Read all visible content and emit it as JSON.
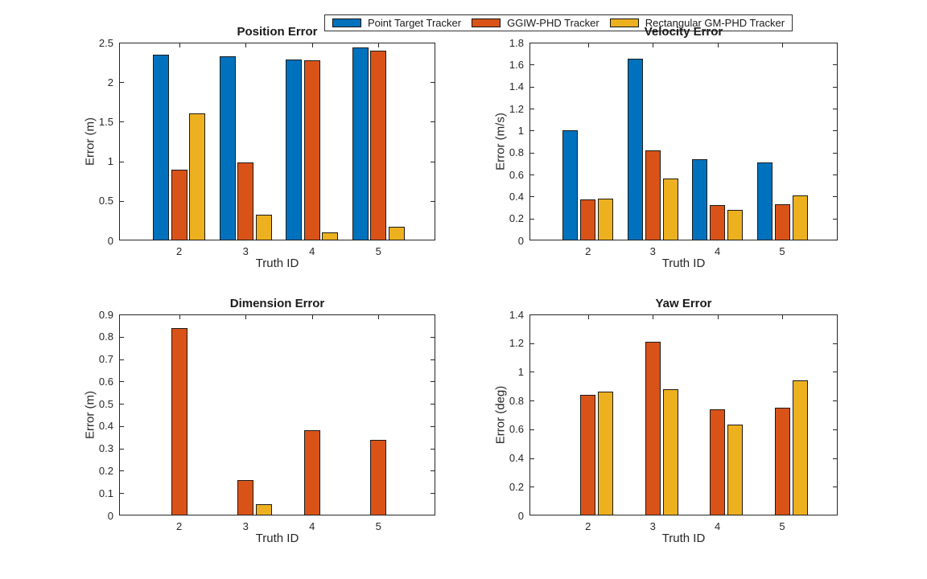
{
  "figure": {
    "background": "#ffffff",
    "axis_color": "#262626"
  },
  "legend": {
    "position": "top-center",
    "items": [
      {
        "label": "Point Target Tracker",
        "color": "#0072BD"
      },
      {
        "label": "GGIW-PHD Tracker",
        "color": "#D95319"
      },
      {
        "label": "Rectangular GM-PHD Tracker",
        "color": "#EDB120"
      }
    ]
  },
  "chart_data": [
    {
      "type": "bar",
      "title": "Position Error",
      "xlabel": "Truth ID",
      "ylabel": "Error (m)",
      "categories": [
        "2",
        "3",
        "4",
        "5"
      ],
      "ylim": [
        0,
        2.5
      ],
      "yticks": [
        "0",
        "0.5",
        "1",
        "1.5",
        "2",
        "2.5"
      ],
      "grid": false,
      "series": [
        {
          "name": "Point Target Tracker",
          "color": "#0072BD",
          "values": [
            2.35,
            2.33,
            2.29,
            2.44
          ]
        },
        {
          "name": "GGIW-PHD Tracker",
          "color": "#D95319",
          "values": [
            0.89,
            0.99,
            2.28,
            2.4
          ]
        },
        {
          "name": "Rectangular GM-PHD Tracker",
          "color": "#EDB120",
          "values": [
            1.61,
            0.33,
            0.1,
            0.17
          ]
        }
      ]
    },
    {
      "type": "bar",
      "title": "Velocity Error",
      "xlabel": "Truth ID",
      "ylabel": "Error (m/s)",
      "categories": [
        "2",
        "3",
        "4",
        "5"
      ],
      "ylim": [
        0,
        1.8
      ],
      "yticks": [
        "0",
        "0.2",
        "0.4",
        "0.6",
        "0.8",
        "1",
        "1.2",
        "1.4",
        "1.6",
        "1.8"
      ],
      "grid": false,
      "series": [
        {
          "name": "Point Target Tracker",
          "color": "#0072BD",
          "values": [
            1.0,
            1.65,
            0.74,
            0.71
          ]
        },
        {
          "name": "GGIW-PHD Tracker",
          "color": "#D95319",
          "values": [
            0.37,
            0.82,
            0.32,
            0.33
          ]
        },
        {
          "name": "Rectangular GM-PHD Tracker",
          "color": "#EDB120",
          "values": [
            0.38,
            0.56,
            0.28,
            0.41
          ]
        }
      ]
    },
    {
      "type": "bar",
      "title": "Dimension Error",
      "xlabel": "Truth ID",
      "ylabel": "Error (m)",
      "categories": [
        "2",
        "3",
        "4",
        "5"
      ],
      "ylim": [
        0,
        0.9
      ],
      "yticks": [
        "0",
        "0.1",
        "0.2",
        "0.3",
        "0.4",
        "0.5",
        "0.6",
        "0.7",
        "0.8",
        "0.9"
      ],
      "grid": false,
      "series": [
        {
          "name": "Point Target Tracker",
          "color": "#0072BD",
          "values": [
            0,
            0,
            0,
            0
          ]
        },
        {
          "name": "GGIW-PHD Tracker",
          "color": "#D95319",
          "values": [
            0.84,
            0.16,
            0.38,
            0.34
          ]
        },
        {
          "name": "Rectangular GM-PHD Tracker",
          "color": "#EDB120",
          "values": [
            0,
            0.05,
            0,
            0
          ]
        }
      ]
    },
    {
      "type": "bar",
      "title": "Yaw Error",
      "xlabel": "Truth ID",
      "ylabel": "Error (deg)",
      "categories": [
        "2",
        "3",
        "4",
        "5"
      ],
      "ylim": [
        0,
        1.4
      ],
      "yticks": [
        "0",
        "0.2",
        "0.4",
        "0.6",
        "0.8",
        "1",
        "1.2",
        "1.4"
      ],
      "grid": false,
      "series": [
        {
          "name": "Point Target Tracker",
          "color": "#0072BD",
          "values": [
            0,
            0,
            0,
            0
          ]
        },
        {
          "name": "GGIW-PHD Tracker",
          "color": "#D95319",
          "values": [
            0.84,
            1.21,
            0.74,
            0.75
          ]
        },
        {
          "name": "Rectangular GM-PHD Tracker",
          "color": "#EDB120",
          "values": [
            0.86,
            0.88,
            0.63,
            0.94
          ]
        }
      ]
    }
  ]
}
